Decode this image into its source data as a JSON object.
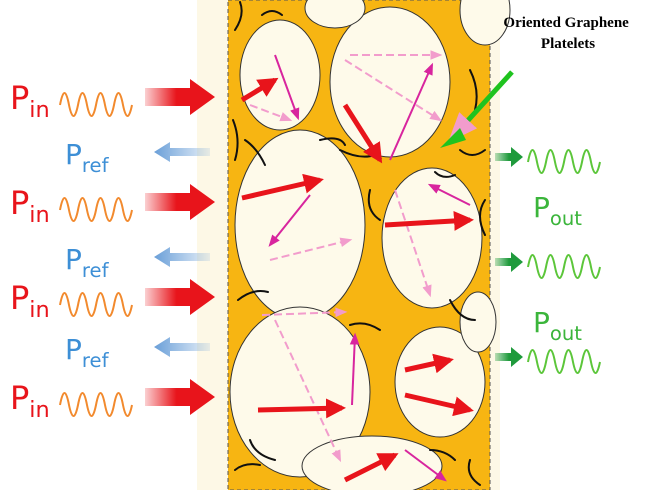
{
  "annotation": [
    "Oriented Graphene",
    "Platelets"
  ],
  "incident": [
    {
      "symbol": "P",
      "subscript": "in"
    },
    {
      "symbol": "P",
      "subscript": "in"
    },
    {
      "symbol": "P",
      "subscript": "in"
    },
    {
      "symbol": "P",
      "subscript": "in"
    }
  ],
  "reflected": [
    {
      "symbol": "P",
      "subscript": "ref"
    },
    {
      "symbol": "P",
      "subscript": "ref"
    },
    {
      "symbol": "P",
      "subscript": "ref"
    }
  ],
  "transmitted": [
    {
      "symbol": "P",
      "subscript": "out"
    },
    {
      "symbol": "P",
      "subscript": "out"
    }
  ]
}
